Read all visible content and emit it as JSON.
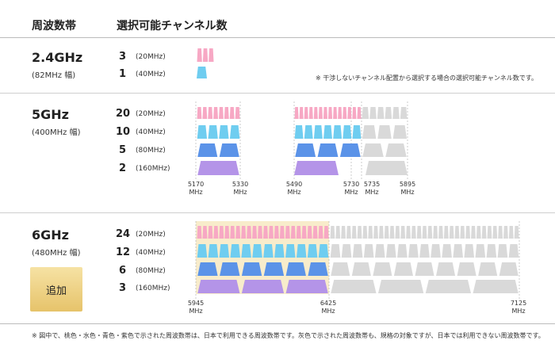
{
  "header": {
    "col_band": "周波数帯",
    "col_channels": "選択可能チャンネル数"
  },
  "note_top": "※ 干渉しないチャンネル配置から選択する場合の選択可能チャンネル数です。",
  "footnote": "※ 図中で、桃色・水色・青色・紫色で示された周波数帯は、日本で利用できる周波数帯です。灰色で示された周波数帯も、規格の対象ですが、日本では利用できない周波数帯です。",
  "colors": {
    "20": "#f7a8c4",
    "40": "#6fcdf0",
    "80": "#5b93e8",
    "160": "#b494e8",
    "gray": "#d9d9d9",
    "highlight": "#f8eccb"
  },
  "bands": [
    {
      "name": "2.4GHz",
      "width": "(82MHz 幅)",
      "rows": [
        {
          "count": "3",
          "unit": "(20MHz)"
        },
        {
          "count": "1",
          "unit": "(40MHz)"
        }
      ]
    },
    {
      "name": "5GHz",
      "width": "(400MHz 幅)",
      "rows": [
        {
          "count": "20",
          "unit": "(20MHz)"
        },
        {
          "count": "10",
          "unit": "(40MHz)"
        },
        {
          "count": "5",
          "unit": "(80MHz)"
        },
        {
          "count": "2",
          "unit": "(160MHz)"
        }
      ],
      "freq_labels": [
        {
          "value": "5170",
          "unit": "MHz"
        },
        {
          "value": "5330",
          "unit": "MHz"
        },
        {
          "value": "5490",
          "unit": "MHz"
        },
        {
          "value": "5730",
          "unit": "MHz"
        },
        {
          "value": "5735",
          "unit": "MHz"
        },
        {
          "value": "5895",
          "unit": "MHz"
        }
      ]
    },
    {
      "name": "6GHz",
      "width": "(480MHz 幅)",
      "badge": "追加",
      "rows": [
        {
          "count": "24",
          "unit": "(20MHz)"
        },
        {
          "count": "12",
          "unit": "(40MHz)"
        },
        {
          "count": "6",
          "unit": "(80MHz)"
        },
        {
          "count": "3",
          "unit": "(160MHz)"
        }
      ],
      "freq_labels": [
        {
          "value": "5945",
          "unit": "MHz"
        },
        {
          "value": "6425",
          "unit": "MHz"
        },
        {
          "value": "7125",
          "unit": "MHz"
        }
      ]
    }
  ]
}
